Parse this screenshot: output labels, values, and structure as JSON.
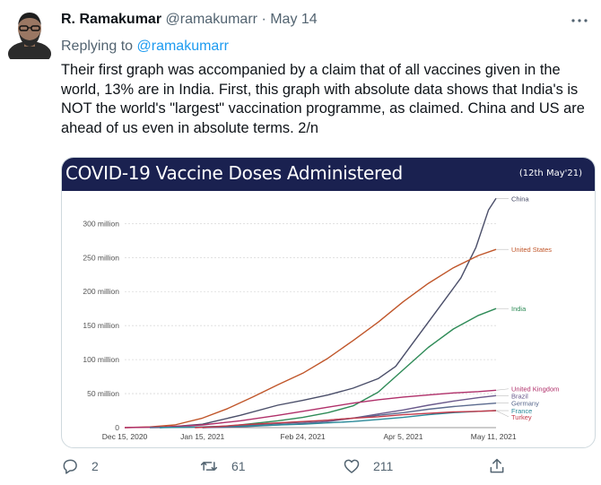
{
  "tweet": {
    "author_name": "R. Ramakumar",
    "handle": "@ramakumarr",
    "separator": "·",
    "date": "May 14",
    "reply_prefix": "Replying to",
    "reply_to": "@ramakumarr",
    "text": "Their first graph was accompanied by a claim that of all vaccines given in the world, 13% are in India. First, this graph with absolute data shows that India's is NOT the world's \"largest\" vaccination programme, as claimed. China and US are ahead of us even in absolute terms. 2/n",
    "icons": {
      "more": "more-icon",
      "reply": "reply-icon",
      "retweet": "retweet-icon",
      "like": "heart-icon",
      "share": "share-icon"
    }
  },
  "metrics": {
    "replies": "2",
    "retweets": "61",
    "likes": "211"
  },
  "chart_data": {
    "type": "line",
    "title": "COVID-19 Vaccine Doses Administered",
    "date_note": "(12th May'21)",
    "x_ticks": [
      "Dec 15, 2020",
      "Jan 15, 2021",
      "Feb 24, 2021",
      "Apr 5, 2021",
      "May 11, 2021"
    ],
    "x_tick_days": [
      0,
      31,
      71,
      111,
      147
    ],
    "y_ticks": [
      "0",
      "50 million",
      "100 million",
      "150 million",
      "200 million",
      "250 million",
      "300 million"
    ],
    "y_tick_values": [
      0,
      50,
      100,
      150,
      200,
      250,
      300
    ],
    "ylim": [
      0,
      340
    ],
    "xlim_days": [
      0,
      148
    ],
    "grid": true,
    "series": [
      {
        "name": "China",
        "color": "#4a4e69",
        "points": [
          [
            14,
            0
          ],
          [
            31,
            5
          ],
          [
            46,
            18
          ],
          [
            61,
            33
          ],
          [
            71,
            40
          ],
          [
            81,
            48
          ],
          [
            91,
            58
          ],
          [
            101,
            72
          ],
          [
            108,
            90
          ],
          [
            115,
            125
          ],
          [
            122,
            160
          ],
          [
            128,
            190
          ],
          [
            134,
            220
          ],
          [
            140,
            265
          ],
          [
            145,
            320
          ],
          [
            148,
            337
          ]
        ]
      },
      {
        "name": "United States",
        "color": "#c0562a",
        "points": [
          [
            0,
            0
          ],
          [
            10,
            1
          ],
          [
            20,
            4
          ],
          [
            31,
            14
          ],
          [
            41,
            28
          ],
          [
            51,
            45
          ],
          [
            61,
            63
          ],
          [
            71,
            80
          ],
          [
            81,
            102
          ],
          [
            91,
            128
          ],
          [
            101,
            155
          ],
          [
            111,
            185
          ],
          [
            121,
            212
          ],
          [
            131,
            235
          ],
          [
            141,
            253
          ],
          [
            148,
            262
          ]
        ]
      },
      {
        "name": "India",
        "color": "#2e8b57",
        "points": [
          [
            31,
            0
          ],
          [
            41,
            2
          ],
          [
            51,
            6
          ],
          [
            61,
            10
          ],
          [
            71,
            15
          ],
          [
            81,
            22
          ],
          [
            91,
            32
          ],
          [
            101,
            52
          ],
          [
            111,
            85
          ],
          [
            121,
            118
          ],
          [
            131,
            145
          ],
          [
            141,
            165
          ],
          [
            148,
            175
          ]
        ]
      },
      {
        "name": "United Kingdom",
        "color": "#b0306a",
        "points": [
          [
            0,
            0
          ],
          [
            16,
            1
          ],
          [
            31,
            4
          ],
          [
            46,
            10
          ],
          [
            61,
            18
          ],
          [
            71,
            24
          ],
          [
            81,
            30
          ],
          [
            91,
            36
          ],
          [
            101,
            41
          ],
          [
            111,
            45
          ],
          [
            121,
            48
          ],
          [
            131,
            51
          ],
          [
            141,
            53
          ],
          [
            148,
            55
          ]
        ]
      },
      {
        "name": "Brazil",
        "color": "#6a5a8c",
        "points": [
          [
            31,
            0
          ],
          [
            46,
            1
          ],
          [
            61,
            4
          ],
          [
            71,
            6
          ],
          [
            81,
            9
          ],
          [
            91,
            14
          ],
          [
            101,
            20
          ],
          [
            111,
            26
          ],
          [
            121,
            33
          ],
          [
            131,
            39
          ],
          [
            141,
            44
          ],
          [
            148,
            47
          ]
        ]
      },
      {
        "name": "Germany",
        "color": "#5b6a8e",
        "points": [
          [
            10,
            0
          ],
          [
            31,
            1
          ],
          [
            46,
            3
          ],
          [
            61,
            6
          ],
          [
            71,
            8
          ],
          [
            81,
            11
          ],
          [
            91,
            14
          ],
          [
            101,
            18
          ],
          [
            111,
            22
          ],
          [
            121,
            27
          ],
          [
            131,
            31
          ],
          [
            141,
            34
          ],
          [
            148,
            36
          ]
        ]
      },
      {
        "name": "France",
        "color": "#2a8a9a",
        "points": [
          [
            14,
            0
          ],
          [
            31,
            1
          ],
          [
            46,
            2
          ],
          [
            61,
            4
          ],
          [
            71,
            5
          ],
          [
            81,
            7
          ],
          [
            91,
            9
          ],
          [
            101,
            12
          ],
          [
            111,
            15
          ],
          [
            121,
            19
          ],
          [
            131,
            22
          ],
          [
            141,
            24
          ],
          [
            148,
            25
          ]
        ]
      },
      {
        "name": "Turkey",
        "color": "#c43a4a",
        "points": [
          [
            28,
            0
          ],
          [
            35,
            1
          ],
          [
            46,
            4
          ],
          [
            61,
            7
          ],
          [
            71,
            9
          ],
          [
            81,
            11
          ],
          [
            91,
            14
          ],
          [
            101,
            16
          ],
          [
            111,
            19
          ],
          [
            121,
            21
          ],
          [
            131,
            23
          ],
          [
            141,
            24
          ],
          [
            148,
            25
          ]
        ]
      }
    ]
  }
}
